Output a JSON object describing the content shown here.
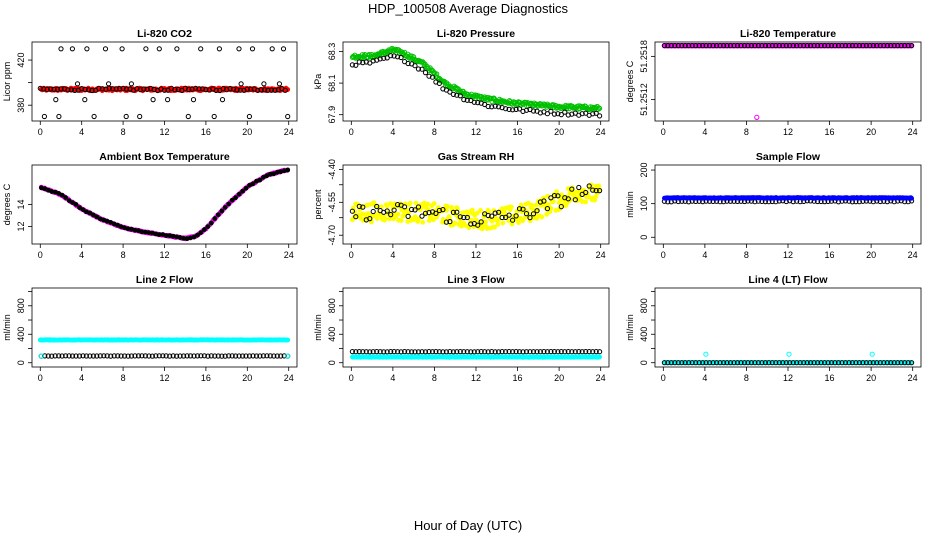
{
  "title": "HDP_100508  Average Diagnostics",
  "xlabel": "Hour of Day (UTC)",
  "chart_data": [
    {
      "type": "scatter",
      "title": "Li-820 CO2",
      "ylabel": "Licor ppm",
      "xlim": [
        -0.8,
        24.8
      ],
      "ylim": [
        366,
        436
      ],
      "xticks": [
        0,
        4,
        8,
        12,
        16,
        20,
        24
      ],
      "yticks": [
        380,
        400,
        420
      ],
      "ytick_labels": [
        "380",
        "",
        "420"
      ],
      "series": [
        {
          "name": "average",
          "color": "#ff0000",
          "marker": "filled",
          "gen": "flat",
          "n": 300,
          "base": 394,
          "noise": 1.2
        },
        {
          "name": "black",
          "color": "#000000",
          "marker": "open",
          "gen": "co2",
          "n": 72
        }
      ]
    },
    {
      "type": "scatter",
      "title": "Li-820 Pressure",
      "ylabel": "kPa",
      "xlim": [
        -0.8,
        24.8
      ],
      "ylim": [
        67.86,
        68.36
      ],
      "xticks": [
        0,
        4,
        8,
        12,
        16,
        20,
        24
      ],
      "yticks": [
        67.9,
        68.1,
        68.3
      ],
      "ytick_labels": [
        "67.9",
        "68.1",
        "68.3"
      ],
      "series": [
        {
          "name": "average",
          "color": "#00c000",
          "marker": "open",
          "gen": "curve",
          "n": 300,
          "xs": [
            0,
            2,
            4,
            5,
            7,
            9,
            11,
            13,
            16,
            20,
            24
          ],
          "ys": [
            68.27,
            68.27,
            68.31,
            68.29,
            68.22,
            68.1,
            68.03,
            68.0,
            67.97,
            67.95,
            67.94
          ],
          "noise": 0.012
        },
        {
          "name": "black",
          "color": "#000000",
          "marker": "open",
          "gen": "curve",
          "n": 72,
          "xs": [
            0,
            2,
            4,
            5,
            7,
            9,
            11,
            13,
            16,
            20,
            24
          ],
          "ys": [
            68.22,
            68.23,
            68.27,
            68.25,
            68.18,
            68.06,
            68.0,
            67.96,
            67.93,
            67.91,
            67.9
          ],
          "noise": 0.01
        }
      ]
    },
    {
      "type": "scatter",
      "title": "Li-820 Temperature",
      "ylabel": "degrees C",
      "xlim": [
        -0.8,
        24.8
      ],
      "ylim": [
        51.2509,
        51.252
      ],
      "xticks": [
        0,
        4,
        8,
        12,
        16,
        20,
        24
      ],
      "yticks": [
        51.2512,
        51.2518
      ],
      "ytick_labels": [
        "51.2512",
        "51.2518"
      ],
      "series": [
        {
          "name": "average",
          "color": "#ff00ff",
          "marker": "open",
          "gen": "flat",
          "n": 300,
          "base": 51.25195,
          "noise": 0,
          "outlier": [
            9,
            51.25095
          ]
        },
        {
          "name": "black",
          "color": "#000000",
          "marker": "open",
          "gen": "flat",
          "n": 72,
          "base": 51.25195,
          "noise": 0
        }
      ]
    },
    {
      "type": "scatter",
      "title": "Ambient Box Temperature",
      "ylabel": "degrees C",
      "xlim": [
        -0.8,
        24.8
      ],
      "ylim": [
        10.4,
        17.6
      ],
      "xticks": [
        0,
        4,
        8,
        12,
        16,
        20,
        24
      ],
      "yticks": [
        12,
        14
      ],
      "ytick_labels": [
        "12",
        "14"
      ],
      "series": [
        {
          "name": "average",
          "color": "#ff00ff",
          "marker": "filled",
          "gen": "curve",
          "n": 300,
          "xs": [
            0,
            2,
            4,
            6,
            8,
            10,
            12,
            14,
            15,
            16,
            18,
            20,
            22,
            24
          ],
          "ys": [
            15.6,
            14.9,
            13.6,
            12.6,
            11.9,
            11.5,
            11.2,
            10.9,
            11.1,
            11.8,
            13.9,
            15.6,
            16.7,
            17.2
          ],
          "noise": 0.05
        },
        {
          "name": "black",
          "color": "#000000",
          "marker": "filled",
          "gen": "curve",
          "n": 72,
          "xs": [
            0,
            2,
            4,
            6,
            8,
            10,
            12,
            14,
            15,
            16,
            18,
            20,
            22,
            24
          ],
          "ys": [
            15.6,
            14.9,
            13.6,
            12.6,
            11.9,
            11.5,
            11.2,
            10.9,
            11.1,
            11.8,
            13.9,
            15.6,
            16.7,
            17.2
          ],
          "noise": 0.05
        }
      ]
    },
    {
      "type": "scatter",
      "title": "Gas Stream RH",
      "ylabel": "percent",
      "xlim": [
        -0.8,
        24.8
      ],
      "ylim": [
        -4.74,
        -4.38
      ],
      "xticks": [
        0,
        4,
        8,
        12,
        16,
        20,
        24
      ],
      "yticks": [
        -4.7,
        -4.62,
        -4.55,
        -4.47,
        -4.4
      ],
      "ytick_labels": [
        "-4.70",
        "",
        "-4.55",
        "",
        "-4.40"
      ],
      "series": [
        {
          "name": "average",
          "color": "#ffff00",
          "marker": "filled",
          "gen": "curve",
          "n": 300,
          "xs": [
            0,
            4,
            8,
            12,
            16,
            18,
            20,
            22,
            24
          ],
          "ys": [
            -4.6,
            -4.59,
            -4.6,
            -4.63,
            -4.61,
            -4.58,
            -4.54,
            -4.5,
            -4.52
          ],
          "noise": 0.045
        },
        {
          "name": "black",
          "color": "#000000",
          "marker": "open",
          "gen": "curve",
          "n": 72,
          "xs": [
            0,
            4,
            8,
            12,
            16,
            18,
            20,
            22,
            24
          ],
          "ys": [
            -4.6,
            -4.59,
            -4.6,
            -4.63,
            -4.61,
            -4.58,
            -4.54,
            -4.5,
            -4.52
          ],
          "noise": 0.035
        }
      ]
    },
    {
      "type": "scatter",
      "title": "Sample Flow",
      "ylabel": "ml/min",
      "xlim": [
        -0.8,
        24.8
      ],
      "ylim": [
        -20,
        215
      ],
      "xticks": [
        0,
        4,
        8,
        12,
        16,
        20,
        24
      ],
      "yticks": [
        0,
        100,
        200
      ],
      "ytick_labels": [
        "0",
        "100",
        "200"
      ],
      "series": [
        {
          "name": "black",
          "color": "#000000",
          "marker": "open",
          "gen": "flat",
          "n": 72,
          "base": 107,
          "noise": 1.5
        },
        {
          "name": "average",
          "color": "#0000ff",
          "marker": "filled",
          "gen": "flat",
          "n": 300,
          "base": 117,
          "noise": 1.2
        }
      ]
    },
    {
      "type": "scatter",
      "title": "Line 2 Flow",
      "ylabel": "ml/min",
      "xlim": [
        -0.8,
        24.8
      ],
      "ylim": [
        -60,
        1050
      ],
      "xticks": [
        0,
        4,
        8,
        12,
        16,
        20,
        24
      ],
      "yticks": [
        0,
        200,
        400,
        600,
        800,
        1000
      ],
      "ytick_labels": [
        "0",
        "",
        "400",
        "",
        "800",
        ""
      ],
      "series": [
        {
          "name": "average",
          "color": "#00ffff",
          "marker": "filled",
          "gen": "flat",
          "n": 300,
          "base": 320,
          "noise": 3,
          "start": 0
        },
        {
          "name": "black",
          "color": "#000000",
          "marker": "open",
          "gen": "flat",
          "n": 72,
          "base": 95,
          "noise": 2
        },
        {
          "name": "average-low",
          "color": "#00ffff",
          "marker": "open",
          "gen": "flat",
          "n": 2,
          "base": 95,
          "noise": 0
        }
      ]
    },
    {
      "type": "scatter",
      "title": "Line 3 Flow",
      "ylabel": "ml/min",
      "xlim": [
        -0.8,
        24.8
      ],
      "ylim": [
        -60,
        1050
      ],
      "xticks": [
        0,
        4,
        8,
        12,
        16,
        20,
        24
      ],
      "yticks": [
        0,
        200,
        400,
        600,
        800,
        1000
      ],
      "ytick_labels": [
        "0",
        "",
        "400",
        "",
        "800",
        ""
      ],
      "series": [
        {
          "name": "average",
          "color": "#00ffff",
          "marker": "filled",
          "gen": "flat",
          "n": 300,
          "base": 80,
          "noise": 4
        },
        {
          "name": "black",
          "color": "#000000",
          "marker": "open",
          "gen": "flat",
          "n": 72,
          "base": 155,
          "noise": 2
        }
      ]
    },
    {
      "type": "scatter",
      "title": "Line 4 (LT) Flow",
      "ylabel": "ml/min",
      "xlim": [
        -0.8,
        24.8
      ],
      "ylim": [
        -60,
        1050
      ],
      "xticks": [
        0,
        4,
        8,
        12,
        16,
        20,
        24
      ],
      "yticks": [
        0,
        200,
        400,
        600,
        800,
        1000
      ],
      "ytick_labels": [
        "0",
        "",
        "400",
        "",
        "800",
        ""
      ],
      "series": [
        {
          "name": "average",
          "color": "#00ffff",
          "marker": "filled",
          "gen": "flat",
          "n": 300,
          "base": 0,
          "noise": 0.5
        },
        {
          "name": "spikes",
          "color": "#00ffff",
          "marker": "open",
          "gen": "points",
          "x": [
            4.1,
            12.1,
            20.1
          ],
          "y": [
            120,
            120,
            120
          ]
        },
        {
          "name": "black",
          "color": "#000000",
          "marker": "open",
          "gen": "flat",
          "n": 72,
          "base": 0,
          "noise": 0
        }
      ]
    }
  ]
}
